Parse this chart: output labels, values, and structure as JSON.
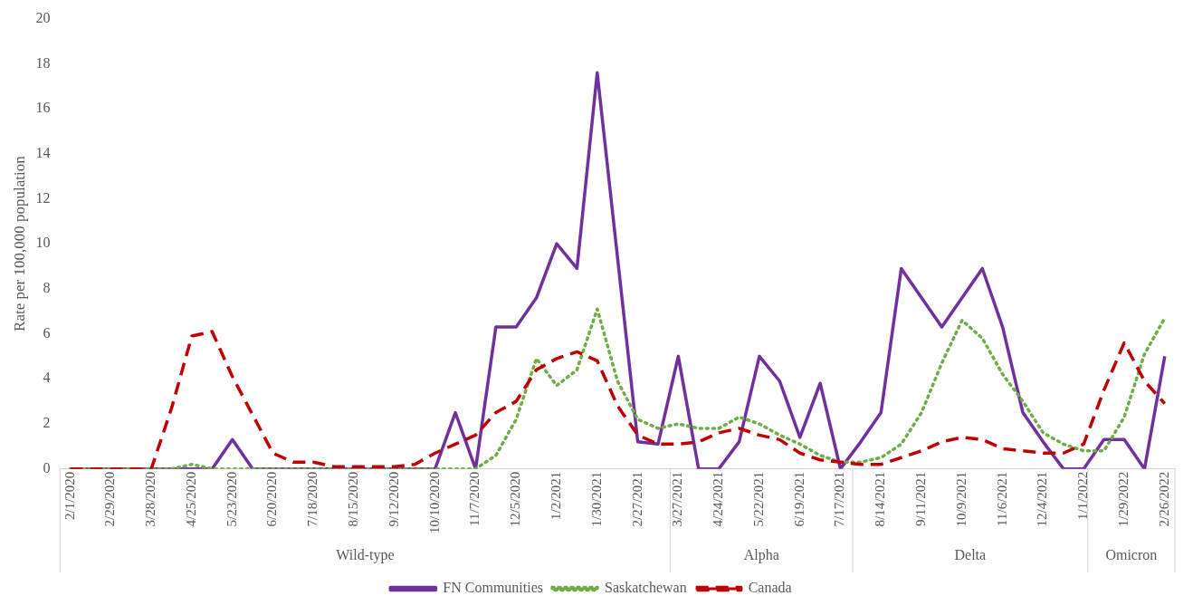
{
  "chart_data": {
    "type": "line",
    "ylabel": "Rate per 100,000 population",
    "categories": [
      "2/1/2020",
      null,
      "2/29/2020",
      null,
      "3/28/2020",
      null,
      "4/25/2020",
      null,
      "5/23/2020",
      null,
      "6/20/2020",
      null,
      "7/18/2020",
      null,
      "8/15/2020",
      null,
      "9/12/2020",
      null,
      "10/10/2020",
      null,
      "11/7/2020",
      null,
      "12/5/2020",
      null,
      "1/2/2021",
      null,
      "1/30/2021",
      null,
      "2/27/2021",
      null,
      "3/27/2021",
      null,
      "4/24/2021",
      null,
      "5/22/2021",
      null,
      "6/19/2021",
      null,
      "7/17/2021",
      null,
      "8/14/2021",
      null,
      "9/11/2021",
      null,
      "10/9/2021",
      null,
      "11/6/2021",
      null,
      "12/4/2021",
      null,
      "1/1/2022",
      null,
      "1/29/2022",
      null,
      "2/26/2022"
    ],
    "series": [
      {
        "name": "FN Communities",
        "color": "#7030a0",
        "line_style": "solid",
        "values": [
          0,
          0,
          0,
          0,
          0,
          0,
          0,
          0,
          1.3,
          0,
          0,
          0,
          0,
          0,
          0,
          0,
          0,
          0,
          0,
          2.5,
          0,
          6.3,
          6.3,
          7.6,
          10,
          8.9,
          17.6,
          9.4,
          1.2,
          1.1,
          5,
          0,
          0,
          1.2,
          5,
          3.9,
          1.4,
          3.8,
          0,
          1.2,
          2.5,
          8.9,
          7.6,
          6.3,
          7.6,
          8.9,
          6.3,
          2.5,
          1.2,
          0,
          0,
          1.3,
          1.3,
          0,
          5
        ]
      },
      {
        "name": "Saskatchewan",
        "color": "#70ad47",
        "line_style": "dotted",
        "values": [
          0,
          0,
          0,
          0,
          0,
          0,
          0.2,
          0,
          0,
          0,
          0,
          0,
          0,
          0,
          0,
          0,
          0,
          0,
          0,
          0,
          0,
          0.6,
          2.2,
          4.9,
          3.7,
          4.4,
          7.1,
          3.9,
          2.2,
          1.8,
          2,
          1.8,
          1.8,
          2.3,
          2,
          1.5,
          1.1,
          0.6,
          0.3,
          0.3,
          0.5,
          1.1,
          2.5,
          4.7,
          6.6,
          5.8,
          4.2,
          3,
          1.6,
          1.1,
          0.8,
          0.8,
          2.3,
          5.1,
          6.7
        ]
      },
      {
        "name": "Canada",
        "color": "#c00000",
        "line_style": "dashed",
        "values": [
          0,
          0,
          0,
          0,
          0,
          2.7,
          5.9,
          6.1,
          4.1,
          2.4,
          0.7,
          0.3,
          0.3,
          0.1,
          0.1,
          0.1,
          0.1,
          0.2,
          0.7,
          1.1,
          1.5,
          2.5,
          3,
          4.4,
          4.9,
          5.2,
          4.8,
          2.8,
          1.5,
          1.1,
          1.1,
          1.2,
          1.6,
          1.8,
          1.5,
          1.3,
          0.7,
          0.4,
          0.3,
          0.2,
          0.2,
          0.5,
          0.8,
          1.2,
          1.4,
          1.3,
          0.9,
          0.8,
          0.7,
          0.7,
          1.1,
          3.5,
          5.6,
          3.9,
          2.9
        ]
      }
    ],
    "ylim": [
      0,
      20
    ],
    "yticks": [
      0,
      2,
      4,
      6,
      8,
      10,
      12,
      14,
      16,
      18,
      20
    ],
    "grid": false,
    "legend": "bottom",
    "annotations": [
      "Wild-type",
      "Alpha",
      "Delta",
      "Omicron"
    ]
  }
}
